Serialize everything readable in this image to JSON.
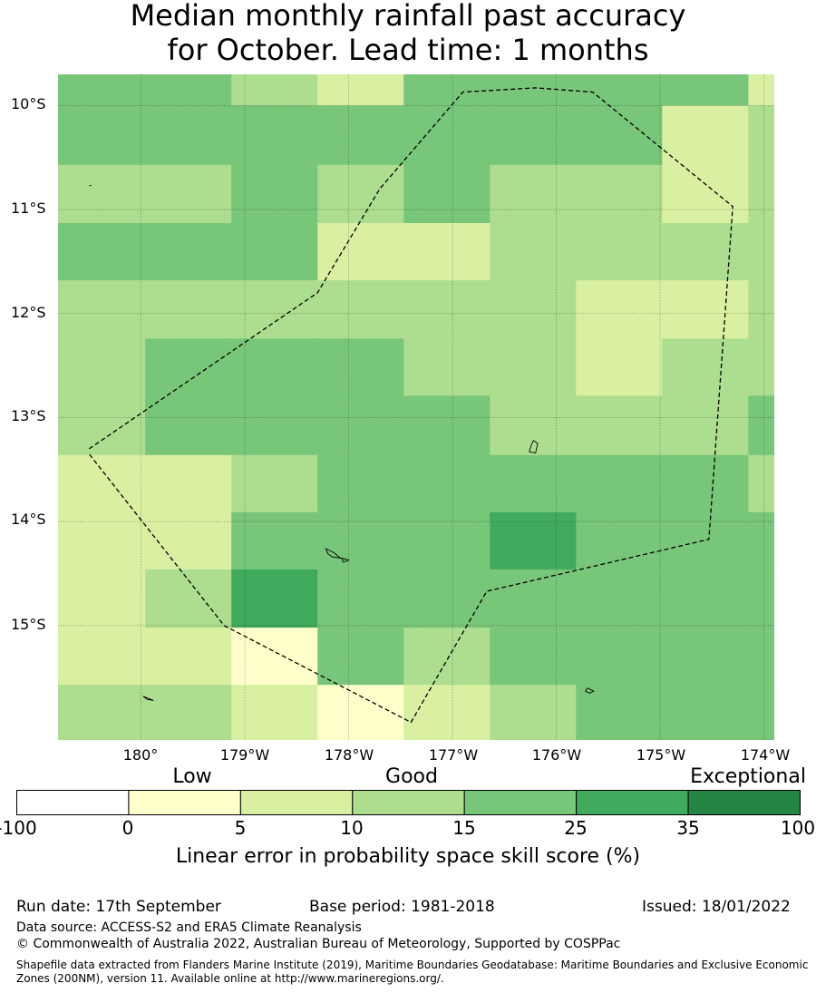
{
  "title_line1": "Median monthly rainfall past accuracy",
  "title_line2": "for October. Lead time: 1 months",
  "map": {
    "lon_range": [
      -180.8,
      -173.9
    ],
    "lat_range": [
      -16.1,
      -9.7
    ],
    "lat_labels": [
      "10°S",
      "11°S",
      "12°S",
      "13°S",
      "14°S",
      "15°S"
    ],
    "lon_labels": [
      "180°",
      "179°W",
      "178°W",
      "177°W",
      "176°W",
      "175°W",
      "174°W"
    ],
    "grid_lons": [
      -180,
      -179,
      -178,
      -177,
      -176,
      -175,
      -174
    ],
    "grid_lats": [
      -10,
      -11,
      -12,
      -13,
      -14,
      -15
    ],
    "cell_edges_lon": [
      -180.8,
      -179.96,
      -179.13,
      -178.3,
      -177.47,
      -176.64,
      -175.81,
      -174.98,
      -174.15,
      -173.9
    ],
    "cell_edges_lat": [
      -9.7,
      -10.0,
      -10.57,
      -11.13,
      -11.68,
      -12.24,
      -12.79,
      -13.36,
      -13.91,
      -14.46,
      -15.02,
      -15.57,
      -16.1
    ],
    "skill_classes": [
      [
        4,
        4,
        3,
        2,
        4,
        4,
        4,
        4,
        2
      ],
      [
        4,
        4,
        4,
        4,
        4,
        4,
        4,
        2,
        3
      ],
      [
        3,
        3,
        4,
        3,
        4,
        3,
        3,
        2,
        3
      ],
      [
        4,
        4,
        4,
        2,
        2,
        3,
        3,
        3,
        3
      ],
      [
        3,
        3,
        3,
        3,
        3,
        3,
        2,
        2,
        3
      ],
      [
        3,
        4,
        4,
        4,
        3,
        3,
        2,
        3,
        3
      ],
      [
        3,
        4,
        4,
        4,
        4,
        3,
        3,
        3,
        4
      ],
      [
        2,
        2,
        3,
        4,
        4,
        4,
        4,
        4,
        3
      ],
      [
        2,
        2,
        4,
        4,
        4,
        5,
        4,
        4,
        4
      ],
      [
        2,
        3,
        5,
        4,
        4,
        4,
        4,
        4,
        4
      ],
      [
        2,
        2,
        1,
        4,
        3,
        4,
        4,
        4,
        4
      ],
      [
        3,
        3,
        2,
        1,
        2,
        3,
        4,
        4,
        4
      ]
    ],
    "eez_boundary": [
      [
        -180.5,
        -13.3
      ],
      [
        -178.3,
        -11.8
      ],
      [
        -177.7,
        -10.8
      ],
      [
        -176.9,
        -9.87
      ],
      [
        -176.2,
        -9.83
      ],
      [
        -175.65,
        -9.87
      ],
      [
        -174.3,
        -10.97
      ],
      [
        -174.53,
        -14.17
      ],
      [
        -176.67,
        -14.67
      ],
      [
        -177.4,
        -15.93
      ],
      [
        -179.2,
        -15.0
      ],
      [
        -180.5,
        -13.35
      ]
    ],
    "islands": [
      [
        [
          -176.22,
          -13.22
        ],
        [
          -176.18,
          -13.25
        ],
        [
          -176.2,
          -13.34
        ],
        [
          -176.26,
          -13.33
        ],
        [
          -176.24,
          -13.26
        ]
      ],
      [
        [
          -178.22,
          -14.26
        ],
        [
          -178.14,
          -14.3
        ],
        [
          -178.08,
          -14.35
        ],
        [
          -178.16,
          -14.34
        ],
        [
          -178.2,
          -14.31
        ]
      ],
      [
        [
          -178.07,
          -14.35
        ],
        [
          -178.0,
          -14.37
        ],
        [
          -178.05,
          -14.39
        ]
      ],
      [
        [
          -175.7,
          -15.6
        ],
        [
          -175.64,
          -15.63
        ],
        [
          -175.68,
          -15.65
        ],
        [
          -175.72,
          -15.63
        ]
      ],
      [
        [
          -179.98,
          -15.68
        ],
        [
          -179.88,
          -15.72
        ],
        [
          -179.94,
          -15.71
        ]
      ],
      [
        [
          -180.5,
          -10.77
        ],
        [
          -180.48,
          -10.77
        ]
      ]
    ]
  },
  "colorbar": {
    "categories": [
      "Low",
      "Good",
      "Exceptional"
    ],
    "ticks": [
      "-100",
      "0",
      "5",
      "10",
      "15",
      "25",
      "35",
      "100"
    ],
    "colors": [
      "#ffffff",
      "#ffffcc",
      "#d9f0a3",
      "#addd8e",
      "#78c679",
      "#41ab5d",
      "#238443"
    ],
    "label": "Linear error in probability space skill score (%)"
  },
  "footer": {
    "run_date": "Run date: 17th September",
    "base_period": "Base period: 1981-2018",
    "issued": "Issued: 18/01/2022",
    "data_source": "Data source: ACCESS-S2 and ERA5 Climate Reanalysis",
    "copyright": "© Commonwealth of Australia 2022, Australian Bureau of Meteorology, Supported by COSPPac",
    "shapefile": "Shapefile data extracted from Flanders Marine Institute (2019), Maritime Boundaries Geodatabase: Maritime Boundaries and Exclusive Economic Zones (200NM), version 11. Available online at http://www.marineregions.org/."
  }
}
